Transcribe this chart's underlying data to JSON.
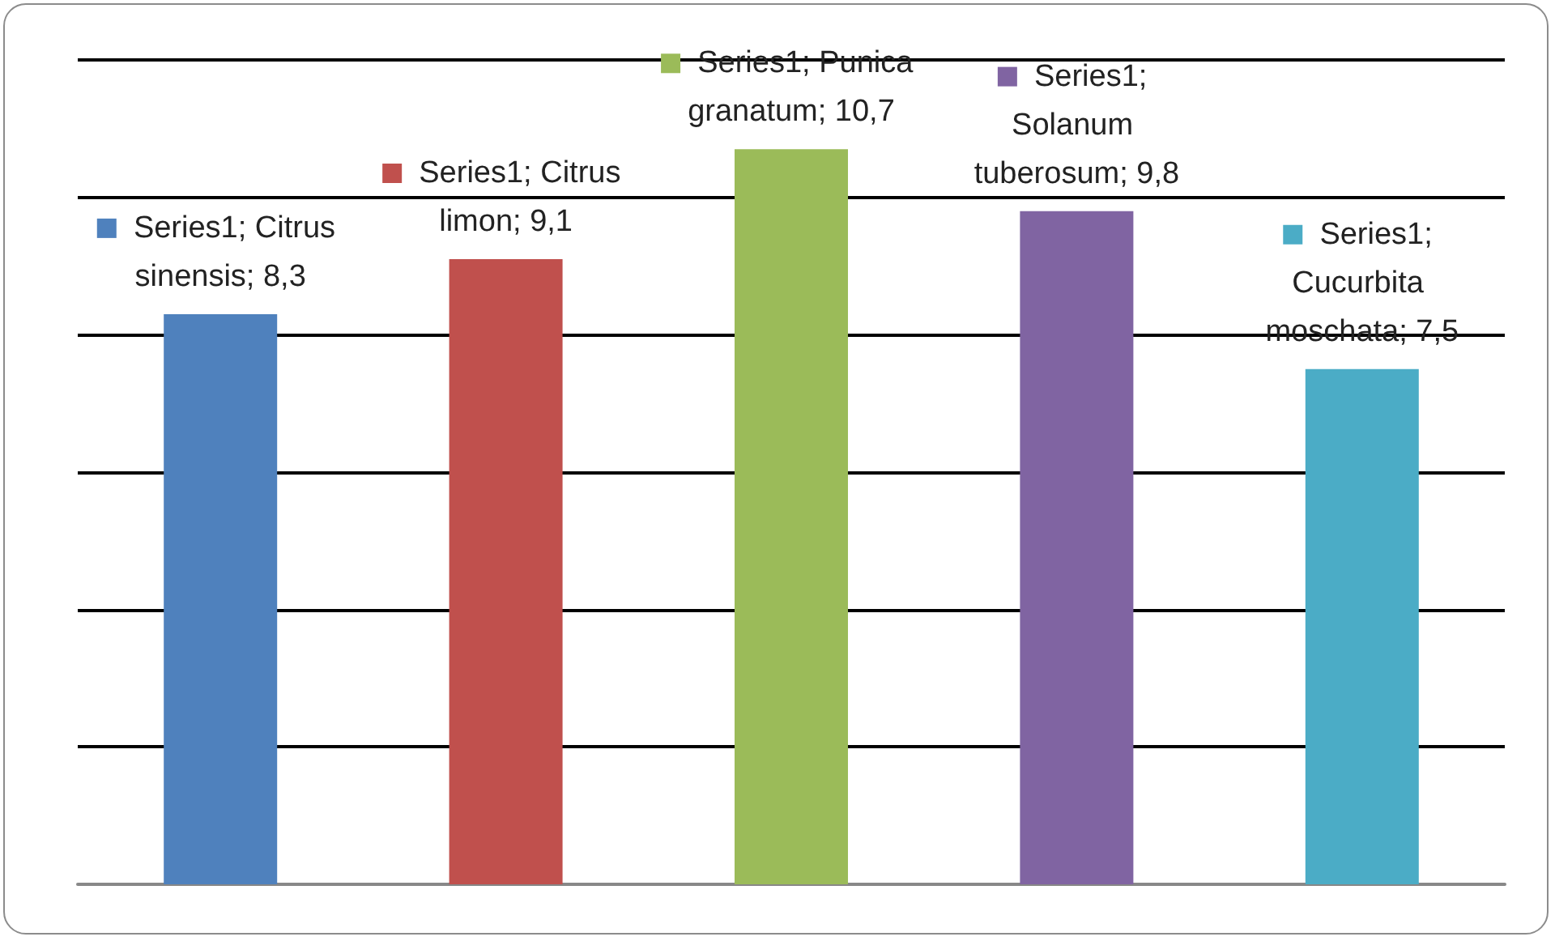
{
  "chart_data": {
    "type": "bar",
    "categories": [
      null,
      null,
      null,
      null,
      null
    ],
    "values": [
      8.3,
      9.1,
      10.7,
      9.8,
      7.5
    ],
    "colors": [
      "#4f81bd",
      "#c0504d",
      "#9bbb59",
      "#8064a2",
      "#4bacc6"
    ],
    "value_labels": [
      "Series1; Citrus sinensis; 8,3",
      "Series1; Citrus limon; 9,1",
      "Series1; Punica granatum; 10,7",
      "Series1; Solanum tuberosum; 9,8",
      "Series1; Cucurbita moschata; 7,5"
    ],
    "ylim": [
      0,
      12
    ],
    "yticks": [
      0,
      2,
      4,
      6,
      8,
      10,
      12
    ],
    "grid": "y",
    "tick_labels": false
  }
}
